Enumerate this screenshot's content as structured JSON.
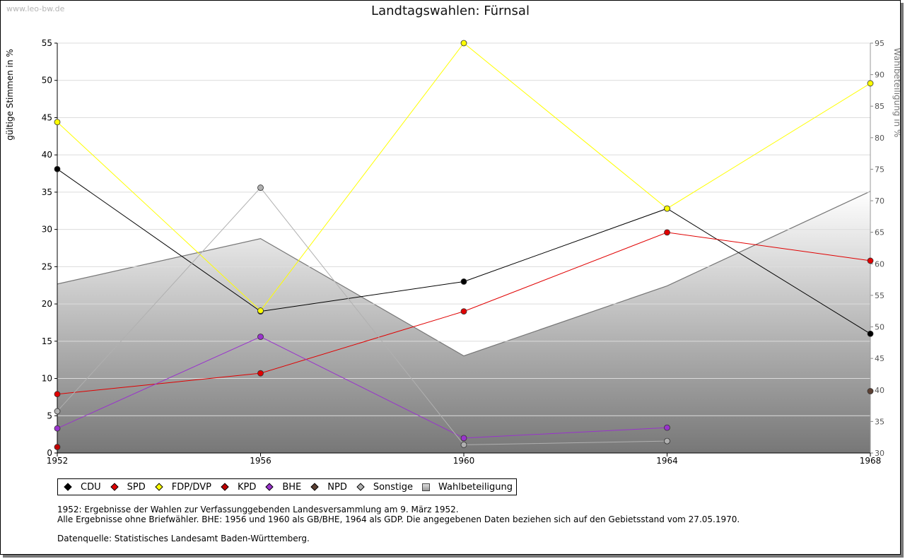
{
  "watermark": "www.leo-bw.de",
  "title": "Landtagswahlen: Fürnsal",
  "notes": [
    "1952: Ergebnisse der Wahlen zur Verfassunggebenden Landesversammlung am 9. März 1952.",
    "Alle Ergebnisse ohne Briefwähler. BHE: 1956 und 1960 als GB/BHE, 1964 als GDP. Die angegebenen Daten beziehen sich auf den Gebietsstand vom 27.05.1970."
  ],
  "source": "Datenquelle: Statistisches Landesamt Baden-Württemberg.",
  "chart_data": {
    "type": "line",
    "title": "Landtagswahlen: Fürnsal",
    "ylabel": "gültige Stimmen in %",
    "y2label": "Wahlbeteiligung in %",
    "x": [
      "1952",
      "1956",
      "1960",
      "1964",
      "1968"
    ],
    "ylim": [
      0,
      55
    ],
    "y2lim": [
      30,
      95
    ],
    "yticks": [
      0,
      5,
      10,
      15,
      20,
      25,
      30,
      35,
      40,
      45,
      50,
      55
    ],
    "y2ticks": [
      30,
      35,
      40,
      45,
      50,
      55,
      60,
      65,
      70,
      75,
      80,
      85,
      90,
      95
    ],
    "grid": true,
    "legend_position": "bottom",
    "series": [
      {
        "name": "CDU",
        "color": "#000000",
        "values": [
          38.1,
          19.0,
          23.0,
          32.8,
          16.0
        ]
      },
      {
        "name": "SPD",
        "color": "#e00000",
        "values": [
          7.9,
          10.7,
          19.0,
          29.6,
          25.8
        ]
      },
      {
        "name": "FDP/DVP",
        "color": "#ffff00",
        "values": [
          44.4,
          19.1,
          55.0,
          32.8,
          49.6
        ]
      },
      {
        "name": "KPD",
        "color": "#c00000",
        "values": [
          0.8,
          null,
          null,
          null,
          null
        ]
      },
      {
        "name": "BHE",
        "color": "#9933cc",
        "values": [
          3.3,
          15.6,
          2.0,
          3.4,
          null
        ]
      },
      {
        "name": "NPD",
        "color": "#5c4033",
        "values": [
          null,
          null,
          null,
          null,
          8.3
        ]
      },
      {
        "name": "Sonstige",
        "color": "#b0b0b0",
        "values": [
          5.6,
          35.6,
          1.1,
          1.6,
          null
        ]
      }
    ],
    "area_series": {
      "name": "Wahlbeteiligung",
      "axis": "right",
      "values": [
        56.8,
        64.0,
        45.4,
        56.5,
        71.5
      ]
    }
  }
}
